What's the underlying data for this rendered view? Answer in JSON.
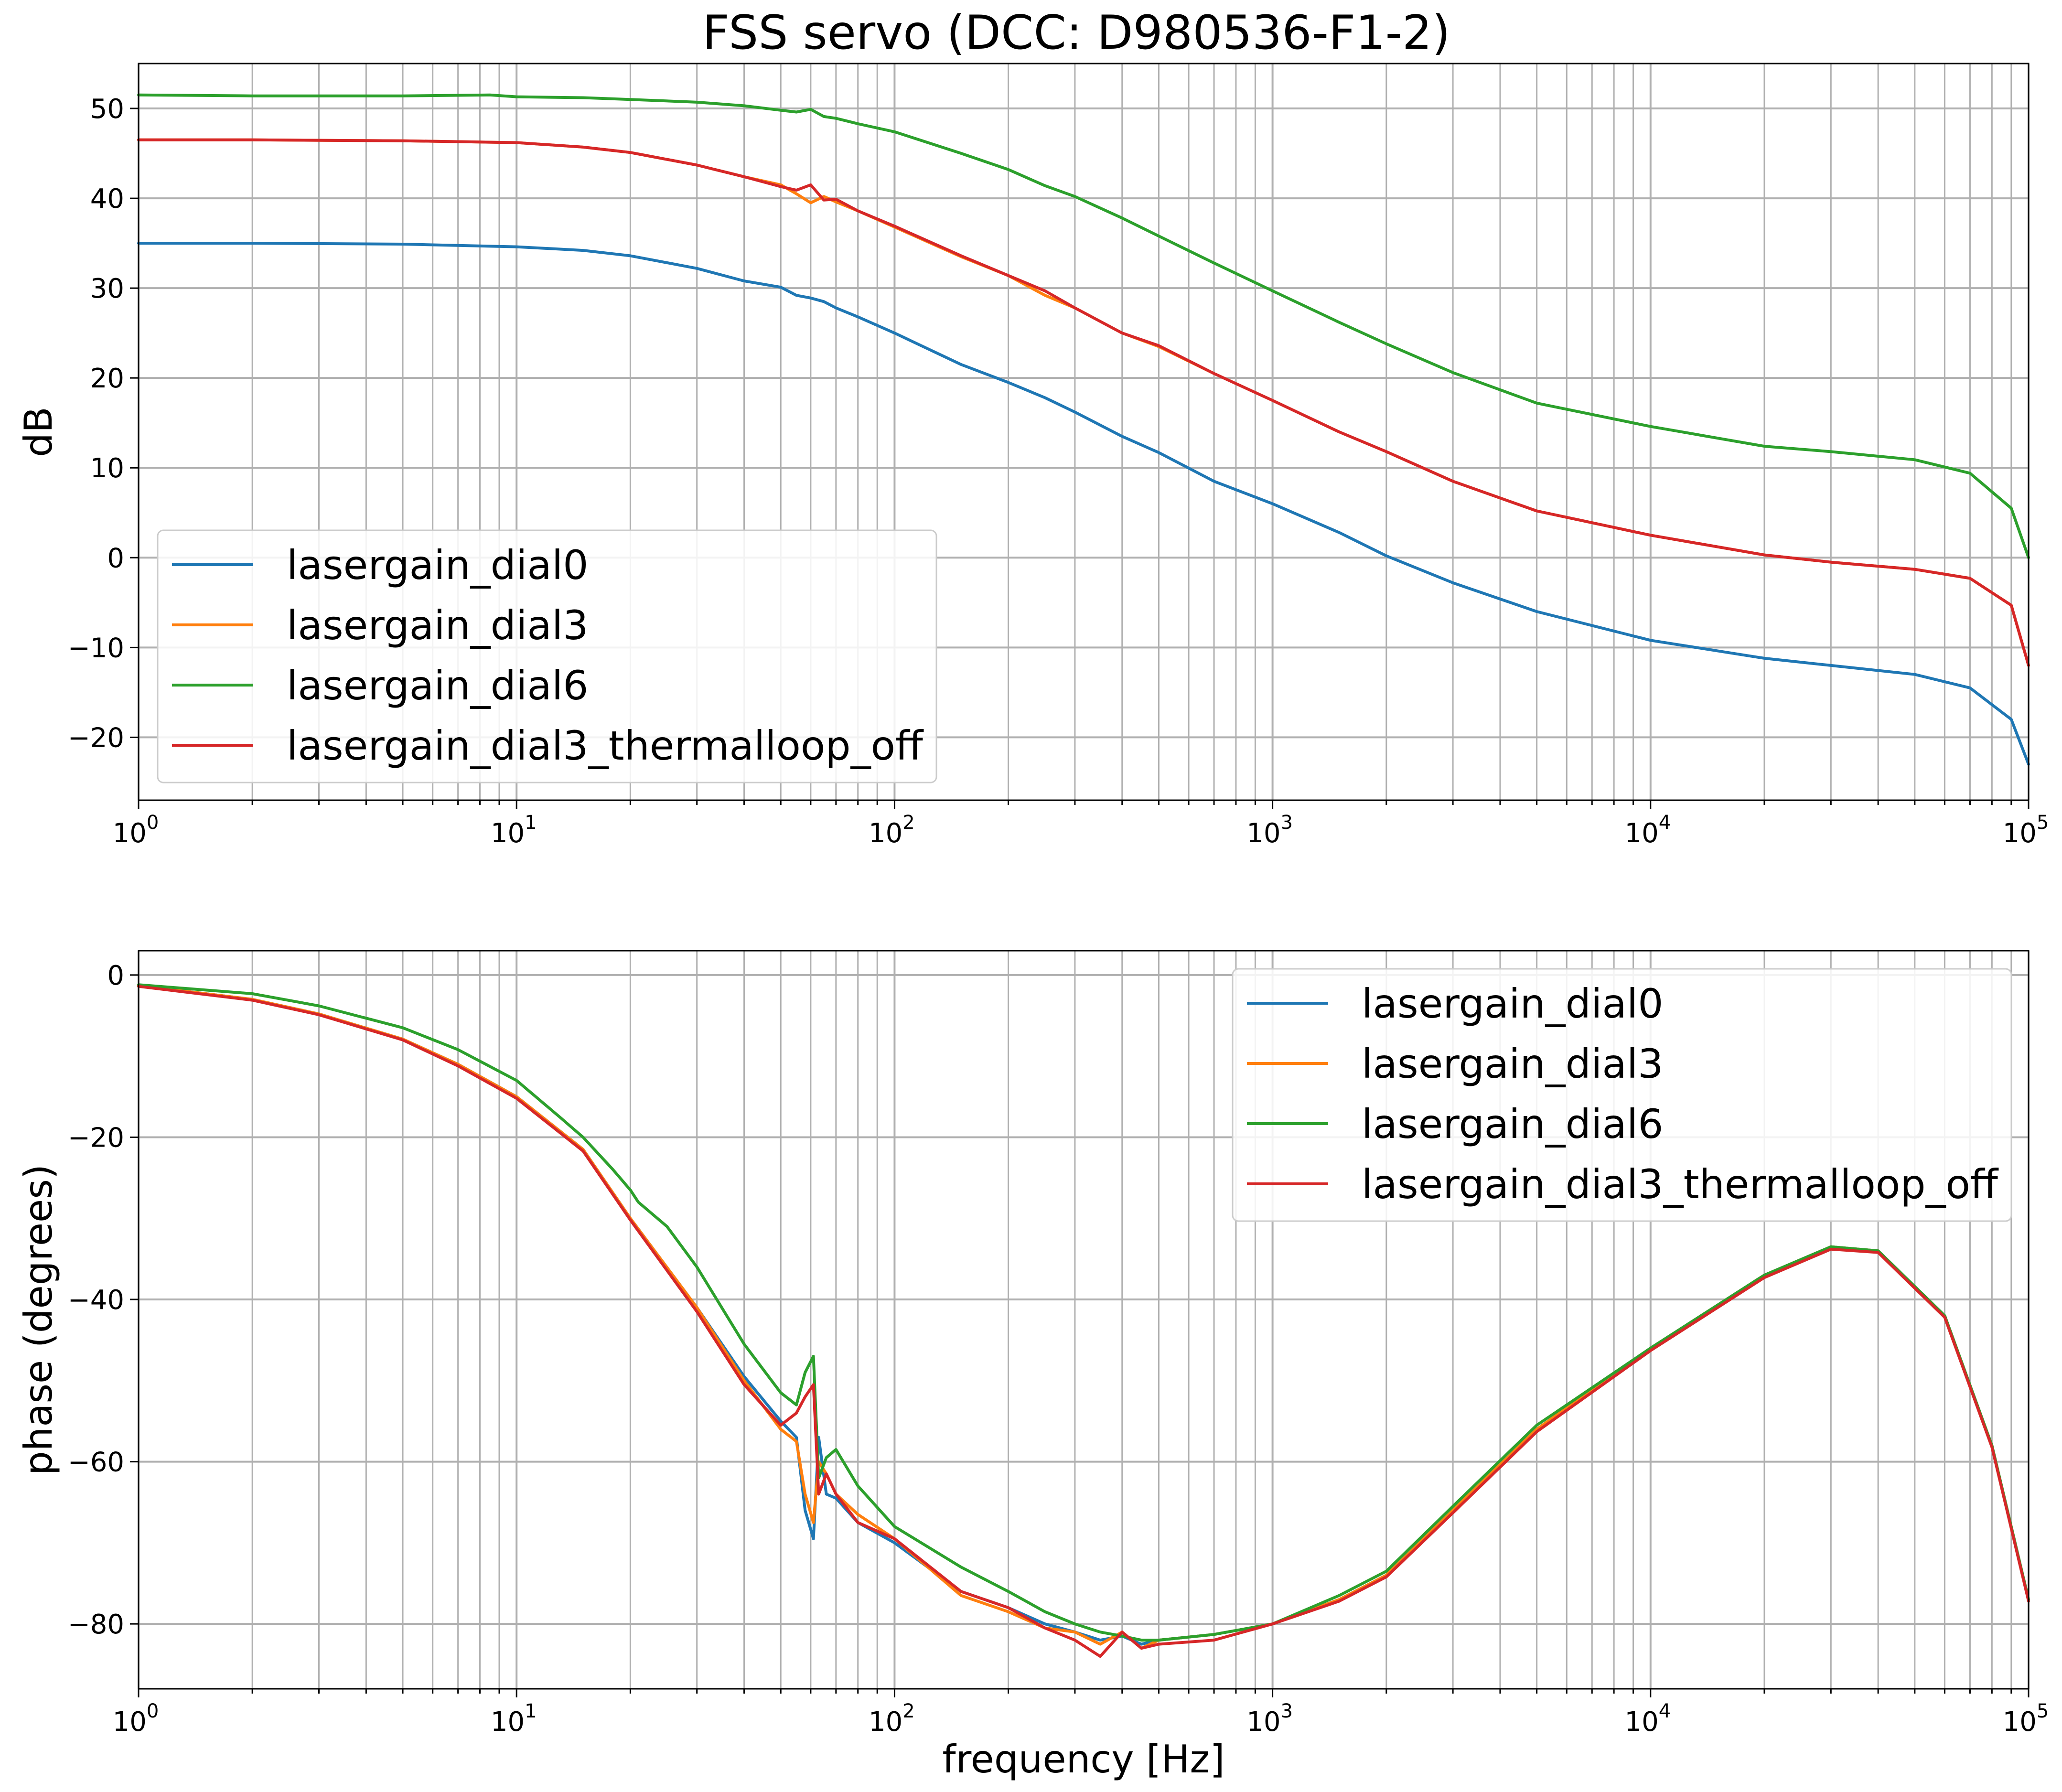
{
  "figure": {
    "title": "FSS servo (DCC: D980536-F1-2)"
  },
  "chart_data": [
    {
      "type": "line",
      "panel": "magnitude",
      "title": "FSS servo (DCC: D980536-F1-2)",
      "xlabel": "",
      "ylabel": "dB",
      "xscale": "log",
      "xlim": [
        1,
        100000
      ],
      "ylim": [
        -27,
        55
      ],
      "grid": true,
      "legend_loc": "lower-left",
      "x_ticks": [
        {
          "base": "10",
          "exp": "0"
        },
        {
          "base": "10",
          "exp": "1"
        },
        {
          "base": "10",
          "exp": "2"
        },
        {
          "base": "10",
          "exp": "3"
        },
        {
          "base": "10",
          "exp": "4"
        },
        {
          "base": "10",
          "exp": "5"
        }
      ],
      "y_ticks": [
        {
          "value": -20,
          "label": "−20"
        },
        {
          "value": -10,
          "label": "−10"
        },
        {
          "value": 0,
          "label": "0"
        },
        {
          "value": 10,
          "label": "10"
        },
        {
          "value": 20,
          "label": "20"
        },
        {
          "value": 30,
          "label": "30"
        },
        {
          "value": 40,
          "label": "40"
        },
        {
          "value": 50,
          "label": "50"
        }
      ],
      "series": [
        {
          "name": "lasergain_dial0",
          "color": "#1f77b4",
          "x": [
            1,
            2,
            5,
            10,
            15,
            20,
            30,
            40,
            50,
            55,
            60,
            65,
            70,
            80,
            100,
            150,
            200,
            250,
            300,
            400,
            500,
            700,
            1000,
            1500,
            2000,
            3000,
            5000,
            10000,
            20000,
            30000,
            50000,
            70000,
            90000,
            100000
          ],
          "y": [
            35,
            35,
            34.9,
            34.6,
            34.2,
            33.6,
            32.2,
            30.8,
            30.1,
            29.2,
            28.9,
            28.5,
            27.8,
            26.8,
            25,
            21.5,
            19.5,
            17.8,
            16.2,
            13.5,
            11.7,
            8.5,
            6,
            2.8,
            0.2,
            -2.8,
            -6,
            -9.2,
            -11.2,
            -12,
            -13,
            -14.5,
            -18,
            -23
          ]
        },
        {
          "name": "lasergain_dial3",
          "color": "#ff7f0e",
          "x": [
            1,
            2,
            5,
            10,
            15,
            20,
            30,
            40,
            50,
            55,
            60,
            65,
            70,
            80,
            100,
            150,
            200,
            250,
            300,
            400,
            500,
            700,
            1000,
            1500,
            2000,
            3000,
            5000,
            10000,
            20000,
            30000,
            50000,
            70000,
            90000,
            100000
          ],
          "y": [
            46.5,
            46.5,
            46.4,
            46.2,
            45.7,
            45.1,
            43.7,
            42.4,
            41.5,
            40.5,
            39.5,
            40.2,
            39.6,
            38.6,
            36.8,
            33.5,
            31.4,
            29.2,
            27.8,
            25,
            23.5,
            20.5,
            17.5,
            14,
            11.8,
            8.5,
            5.2,
            2.5,
            0.3,
            -0.5,
            -1.3,
            -2.3,
            -5.3,
            -12
          ]
        },
        {
          "name": "lasergain_dial6",
          "color": "#2ca02c",
          "x": [
            1,
            2,
            5,
            8.5,
            10,
            15,
            20,
            30,
            40,
            50,
            55,
            60,
            65,
            70,
            80,
            100,
            150,
            200,
            250,
            300,
            400,
            500,
            700,
            1000,
            1500,
            2000,
            3000,
            5000,
            10000,
            20000,
            30000,
            50000,
            70000,
            90000,
            100000
          ],
          "y": [
            51.5,
            51.4,
            51.4,
            51.5,
            51.3,
            51.2,
            51,
            50.7,
            50.3,
            49.8,
            49.6,
            49.9,
            49.1,
            48.9,
            48.3,
            47.4,
            45,
            43.2,
            41.4,
            40.2,
            37.8,
            35.8,
            32.8,
            29.7,
            26.2,
            23.8,
            20.6,
            17.2,
            14.6,
            12.4,
            11.8,
            10.9,
            9.4,
            5.5,
            0
          ]
        },
        {
          "name": "lasergain_dial3_thermalloop_off",
          "color": "#d62728",
          "x": [
            1,
            2,
            5,
            10,
            15,
            20,
            30,
            40,
            50,
            55,
            60,
            65,
            70,
            80,
            100,
            150,
            200,
            250,
            300,
            400,
            500,
            700,
            1000,
            1500,
            2000,
            3000,
            5000,
            10000,
            20000,
            30000,
            50000,
            70000,
            90000,
            100000
          ],
          "y": [
            46.5,
            46.5,
            46.4,
            46.2,
            45.7,
            45.1,
            43.7,
            42.4,
            41.3,
            40.9,
            41.5,
            39.8,
            39.9,
            38.6,
            36.9,
            33.6,
            31.4,
            29.7,
            27.8,
            25,
            23.6,
            20.5,
            17.5,
            14,
            11.8,
            8.5,
            5.2,
            2.5,
            0.3,
            -0.5,
            -1.3,
            -2.3,
            -5.3,
            -12
          ]
        }
      ]
    },
    {
      "type": "line",
      "panel": "phase",
      "title": "",
      "xlabel": "frequency [Hz]",
      "ylabel": "phase (degrees)",
      "xscale": "log",
      "xlim": [
        1,
        100000
      ],
      "ylim": [
        -88,
        3
      ],
      "grid": true,
      "legend_loc": "upper-right",
      "x_ticks": [
        {
          "base": "10",
          "exp": "0"
        },
        {
          "base": "10",
          "exp": "1"
        },
        {
          "base": "10",
          "exp": "2"
        },
        {
          "base": "10",
          "exp": "3"
        },
        {
          "base": "10",
          "exp": "4"
        },
        {
          "base": "10",
          "exp": "5"
        }
      ],
      "y_ticks": [
        {
          "value": -80,
          "label": "−80"
        },
        {
          "value": -60,
          "label": "−60"
        },
        {
          "value": -40,
          "label": "−40"
        },
        {
          "value": -20,
          "label": "−20"
        },
        {
          "value": 0,
          "label": "0"
        }
      ],
      "series": [
        {
          "name": "lasergain_dial0",
          "color": "#1f77b4",
          "x": [
            1,
            2,
            3,
            5,
            7,
            10,
            15,
            20,
            30,
            40,
            50,
            55,
            58,
            61,
            63,
            66,
            70,
            80,
            100,
            150,
            200,
            250,
            300,
            350,
            400,
            450,
            500,
            700,
            1000,
            1500,
            2000,
            3000,
            5000,
            10000,
            20000,
            30000,
            40000,
            60000,
            80000,
            100000
          ],
          "y": [
            -1.3,
            -3,
            -4.8,
            -7.9,
            -11,
            -15,
            -21.5,
            -30,
            -41,
            -49.5,
            -55,
            -57,
            -66,
            -69.5,
            -57,
            -64,
            -64.5,
            -67.5,
            -70,
            -76,
            -78,
            -80,
            -81,
            -82,
            -81.5,
            -82.5,
            -82,
            -81.3,
            -80,
            -77,
            -74,
            -66,
            -56,
            -46,
            -37,
            -33.5,
            -34,
            -42,
            -58,
            -77
          ]
        },
        {
          "name": "lasergain_dial3",
          "color": "#ff7f0e",
          "x": [
            1,
            2,
            3,
            5,
            7,
            10,
            15,
            20,
            30,
            40,
            50,
            55,
            58,
            61,
            63,
            66,
            70,
            80,
            100,
            150,
            200,
            250,
            300,
            350,
            400,
            450,
            500,
            700,
            1000,
            1500,
            2000,
            3000,
            5000,
            10000,
            20000,
            30000,
            40000,
            60000,
            80000,
            100000
          ],
          "y": [
            -1.3,
            -3,
            -4.8,
            -7.9,
            -11,
            -15,
            -21.5,
            -30,
            -41,
            -50,
            -56,
            -57.5,
            -64,
            -67.5,
            -60,
            -61.5,
            -64,
            -66.5,
            -69.5,
            -76.5,
            -78.5,
            -80.5,
            -81,
            -82.5,
            -81,
            -83,
            -82,
            -81.3,
            -80,
            -77,
            -74,
            -66,
            -56,
            -46,
            -37,
            -33.5,
            -34,
            -42,
            -58,
            -77
          ]
        },
        {
          "name": "lasergain_dial6",
          "color": "#2ca02c",
          "x": [
            1,
            2,
            3,
            5,
            7,
            10,
            13,
            15,
            18,
            20,
            21,
            25,
            30,
            40,
            50,
            55,
            58,
            61,
            63,
            66,
            70,
            80,
            100,
            150,
            200,
            250,
            300,
            350,
            400,
            450,
            500,
            700,
            1000,
            1500,
            2000,
            3000,
            5000,
            10000,
            20000,
            30000,
            40000,
            60000,
            80000,
            100000
          ],
          "y": [
            -1.2,
            -2.3,
            -3.8,
            -6.5,
            -9.2,
            -13,
            -17.5,
            -20,
            -24,
            -26.5,
            -28,
            -31,
            -36,
            -45.5,
            -51.5,
            -53,
            -49,
            -47,
            -62,
            -59.5,
            -58.5,
            -63,
            -68,
            -73,
            -76,
            -78.5,
            -80,
            -81,
            -81.5,
            -82,
            -82,
            -81.3,
            -80,
            -76.5,
            -73.5,
            -65.5,
            -55.5,
            -46,
            -37,
            -33.5,
            -34,
            -42,
            -58,
            -77
          ]
        },
        {
          "name": "lasergain_dial3_thermalloop_off",
          "color": "#d62728",
          "x": [
            1,
            2,
            3,
            5,
            7,
            10,
            15,
            20,
            30,
            40,
            50,
            55,
            58,
            61,
            63,
            66,
            70,
            80,
            100,
            150,
            200,
            250,
            300,
            350,
            400,
            450,
            500,
            700,
            1000,
            1500,
            2000,
            3000,
            5000,
            10000,
            20000,
            30000,
            40000,
            60000,
            80000,
            100000
          ],
          "y": [
            -1.4,
            -3.1,
            -4.9,
            -8,
            -11.2,
            -15.2,
            -21.7,
            -30.2,
            -41.5,
            -50.5,
            -55.5,
            -54,
            -52,
            -50.5,
            -64,
            -61.5,
            -64,
            -67.5,
            -69.5,
            -76,
            -78,
            -80.5,
            -82,
            -84,
            -81,
            -83,
            -82.5,
            -82,
            -80,
            -77.2,
            -74.2,
            -66.3,
            -56.3,
            -46.3,
            -37.3,
            -33.8,
            -34.2,
            -42.2,
            -58.2,
            -77.2
          ]
        }
      ]
    }
  ]
}
